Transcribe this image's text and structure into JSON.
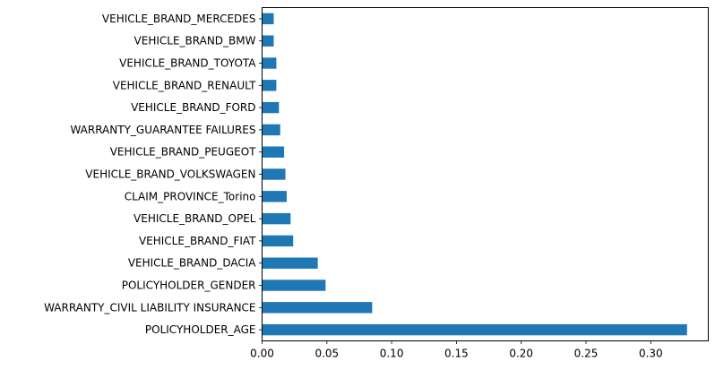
{
  "chart_data": {
    "type": "bar",
    "orientation": "horizontal",
    "title": "",
    "xlabel": "",
    "ylabel": "",
    "categories": [
      "POLICYHOLDER_AGE",
      "WARRANTY_CIVIL LIABILITY INSURANCE",
      "POLICYHOLDER_GENDER",
      "VEHICLE_BRAND_DACIA",
      "VEHICLE_BRAND_FIAT",
      "VEHICLE_BRAND_OPEL",
      "CLAIM_PROVINCE_Torino",
      "VEHICLE_BRAND_VOLKSWAGEN",
      "VEHICLE_BRAND_PEUGEOT",
      "WARRANTY_GUARANTEE FAILURES",
      "VEHICLE_BRAND_FORD",
      "VEHICLE_BRAND_RENAULT",
      "VEHICLE_BRAND_TOYOTA",
      "VEHICLE_BRAND_BMW",
      "VEHICLE_BRAND_MERCEDES"
    ],
    "values": [
      0.328,
      0.085,
      0.049,
      0.043,
      0.024,
      0.022,
      0.019,
      0.018,
      0.017,
      0.014,
      0.013,
      0.011,
      0.011,
      0.009,
      0.009
    ],
    "xlim": [
      0,
      0.3444
    ],
    "xticks": [
      0.0,
      0.05,
      0.1,
      0.15,
      0.2,
      0.25,
      0.3
    ],
    "xtick_labels": [
      "0.00",
      "0.05",
      "0.10",
      "0.15",
      "0.20",
      "0.25",
      "0.30"
    ],
    "grid": false,
    "bar_color": "#1f77b4"
  }
}
